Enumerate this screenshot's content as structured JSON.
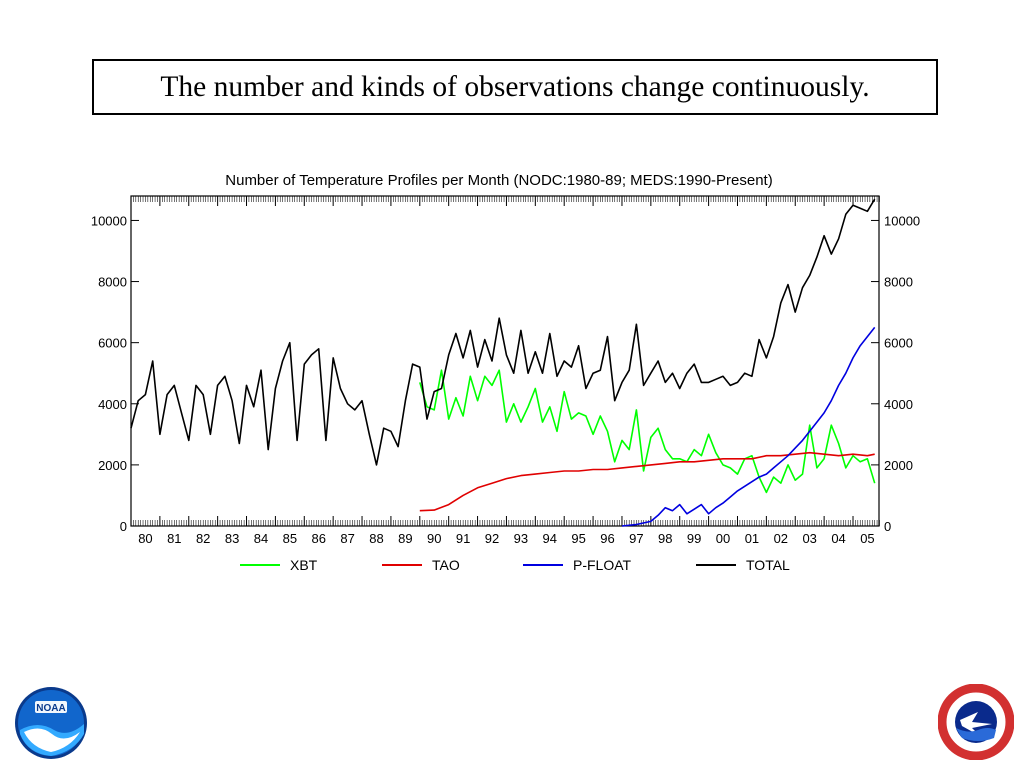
{
  "slide": {
    "title": "The number and kinds of observations change continuously."
  },
  "chart_data": {
    "type": "line",
    "title": "Number of Temperature Profiles per Month (NODC:1980-89; MEDS:1990-Present)",
    "x_unit": "year",
    "xlim": [
      1980,
      2005.9
    ],
    "ylim": [
      0,
      10800
    ],
    "y_ticks": [
      0,
      2000,
      4000,
      6000,
      8000,
      10000
    ],
    "y_axis_sides": [
      "left",
      "right"
    ],
    "x_tick_labels": [
      "80",
      "81",
      "82",
      "83",
      "84",
      "85",
      "86",
      "87",
      "88",
      "89",
      "90",
      "91",
      "92",
      "93",
      "94",
      "95",
      "96",
      "97",
      "98",
      "99",
      "00",
      "01",
      "02",
      "03",
      "04",
      "05"
    ],
    "grid": false,
    "legend_position": "bottom",
    "series": [
      {
        "name": "TOTAL",
        "color": "#000000",
        "x": [
          1980.0,
          1980.25,
          1980.5,
          1980.75,
          1981.0,
          1981.25,
          1981.5,
          1981.75,
          1982.0,
          1982.25,
          1982.5,
          1982.75,
          1983.0,
          1983.25,
          1983.5,
          1983.75,
          1984.0,
          1984.25,
          1984.5,
          1984.75,
          1985.0,
          1985.25,
          1985.5,
          1985.75,
          1986.0,
          1986.25,
          1986.5,
          1986.75,
          1987.0,
          1987.25,
          1987.5,
          1987.75,
          1988.0,
          1988.25,
          1988.5,
          1988.75,
          1989.0,
          1989.25,
          1989.5,
          1989.75,
          1990.0,
          1990.25,
          1990.5,
          1990.75,
          1991.0,
          1991.25,
          1991.5,
          1991.75,
          1992.0,
          1992.25,
          1992.5,
          1992.75,
          1993.0,
          1993.25,
          1993.5,
          1993.75,
          1994.0,
          1994.25,
          1994.5,
          1994.75,
          1995.0,
          1995.25,
          1995.5,
          1995.75,
          1996.0,
          1996.25,
          1996.5,
          1996.75,
          1997.0,
          1997.25,
          1997.5,
          1997.75,
          1998.0,
          1998.25,
          1998.5,
          1998.75,
          1999.0,
          1999.25,
          1999.5,
          1999.75,
          2000.0,
          2000.25,
          2000.5,
          2000.75,
          2001.0,
          2001.25,
          2001.5,
          2001.75,
          2002.0,
          2002.25,
          2002.5,
          2002.75,
          2003.0,
          2003.25,
          2003.5,
          2003.75,
          2004.0,
          2004.25,
          2004.5,
          2004.75,
          2005.0,
          2005.25,
          2005.5,
          2005.75
        ],
        "values": [
          3200,
          4100,
          4300,
          5400,
          3000,
          4300,
          4600,
          3700,
          2800,
          4600,
          4300,
          3000,
          4600,
          4900,
          4100,
          2700,
          4600,
          3900,
          5100,
          2500,
          4500,
          5400,
          6000,
          2800,
          5300,
          5600,
          5800,
          2800,
          5500,
          4500,
          4000,
          3800,
          4100,
          3000,
          2000,
          3200,
          3100,
          2600,
          4100,
          5300,
          5200,
          3500,
          4400,
          4500,
          5600,
          6300,
          5500,
          6400,
          5200,
          6100,
          5400,
          6800,
          5600,
          5000,
          6400,
          5000,
          5700,
          5000,
          6300,
          4900,
          5400,
          5200,
          5900,
          4500,
          5000,
          5100,
          6200,
          4100,
          4700,
          5100,
          6600,
          4600,
          5000,
          5400,
          4700,
          5000,
          4500,
          5000,
          5300,
          4700,
          4700,
          4800,
          4900,
          4600,
          4700,
          5000,
          4900,
          6100,
          5500,
          6200,
          7300,
          7900,
          7000,
          7800,
          8200,
          8800,
          9500,
          8900,
          9400,
          10200,
          10500,
          10400,
          10300,
          10700
        ]
      },
      {
        "name": "XBT",
        "color": "#00ff00",
        "x": [
          1990.0,
          1990.25,
          1990.5,
          1990.75,
          1991.0,
          1991.25,
          1991.5,
          1991.75,
          1992.0,
          1992.25,
          1992.5,
          1992.75,
          1993.0,
          1993.25,
          1993.5,
          1993.75,
          1994.0,
          1994.25,
          1994.5,
          1994.75,
          1995.0,
          1995.25,
          1995.5,
          1995.75,
          1996.0,
          1996.25,
          1996.5,
          1996.75,
          1997.0,
          1997.25,
          1997.5,
          1997.75,
          1998.0,
          1998.25,
          1998.5,
          1998.75,
          1999.0,
          1999.25,
          1999.5,
          1999.75,
          2000.0,
          2000.25,
          2000.5,
          2000.75,
          2001.0,
          2001.25,
          2001.5,
          2001.75,
          2002.0,
          2002.25,
          2002.5,
          2002.75,
          2003.0,
          2003.25,
          2003.5,
          2003.75,
          2004.0,
          2004.25,
          2004.5,
          2004.75,
          2005.0,
          2005.25,
          2005.5,
          2005.75
        ],
        "values": [
          4700,
          3900,
          3800,
          5100,
          3500,
          4200,
          3600,
          4900,
          4100,
          4900,
          4600,
          5100,
          3400,
          4000,
          3400,
          3900,
          4500,
          3400,
          3900,
          3100,
          4400,
          3500,
          3700,
          3600,
          3000,
          3600,
          3100,
          2100,
          2800,
          2500,
          3800,
          1800,
          2900,
          3200,
          2500,
          2200,
          2200,
          2100,
          2500,
          2300,
          3000,
          2400,
          2000,
          1900,
          1700,
          2200,
          2300,
          1600,
          1100,
          1600,
          1400,
          2000,
          1500,
          1700,
          3300,
          1900,
          2200,
          3300,
          2700,
          1900,
          2300,
          2100,
          2200,
          1400
        ]
      },
      {
        "name": "TAO",
        "color": "#e00000",
        "x": [
          1990.0,
          1990.5,
          1991.0,
          1991.5,
          1992.0,
          1992.5,
          1993.0,
          1993.5,
          1994.0,
          1994.5,
          1995.0,
          1995.5,
          1996.0,
          1996.5,
          1997.0,
          1997.5,
          1998.0,
          1998.5,
          1999.0,
          1999.5,
          2000.0,
          2000.5,
          2001.0,
          2001.5,
          2002.0,
          2002.5,
          2003.0,
          2003.5,
          2004.0,
          2004.5,
          2005.0,
          2005.5,
          2005.75
        ],
        "values": [
          500,
          520,
          700,
          1000,
          1250,
          1400,
          1550,
          1650,
          1700,
          1750,
          1800,
          1800,
          1850,
          1850,
          1900,
          1950,
          2000,
          2050,
          2100,
          2100,
          2150,
          2200,
          2200,
          2200,
          2300,
          2300,
          2350,
          2400,
          2350,
          2300,
          2350,
          2300,
          2350
        ]
      },
      {
        "name": "P-FLOAT",
        "color": "#0000e0",
        "x": [
          1997.0,
          1997.5,
          1998.0,
          1998.25,
          1998.5,
          1998.75,
          1999.0,
          1999.25,
          1999.5,
          1999.75,
          2000.0,
          2000.25,
          2000.5,
          2000.75,
          2001.0,
          2001.25,
          2001.5,
          2001.75,
          2002.0,
          2002.25,
          2002.5,
          2002.75,
          2003.0,
          2003.25,
          2003.5,
          2003.75,
          2004.0,
          2004.25,
          2004.5,
          2004.75,
          2005.0,
          2005.25,
          2005.5,
          2005.75
        ],
        "values": [
          0,
          50,
          150,
          350,
          600,
          500,
          700,
          400,
          550,
          700,
          400,
          600,
          750,
          950,
          1150,
          1300,
          1450,
          1600,
          1700,
          1900,
          2100,
          2300,
          2550,
          2800,
          3100,
          3400,
          3700,
          4100,
          4600,
          5000,
          5500,
          5900,
          6200,
          6500
        ]
      }
    ]
  },
  "logos": {
    "left": "noaa-logo",
    "right": "national-weather-service-logo"
  }
}
